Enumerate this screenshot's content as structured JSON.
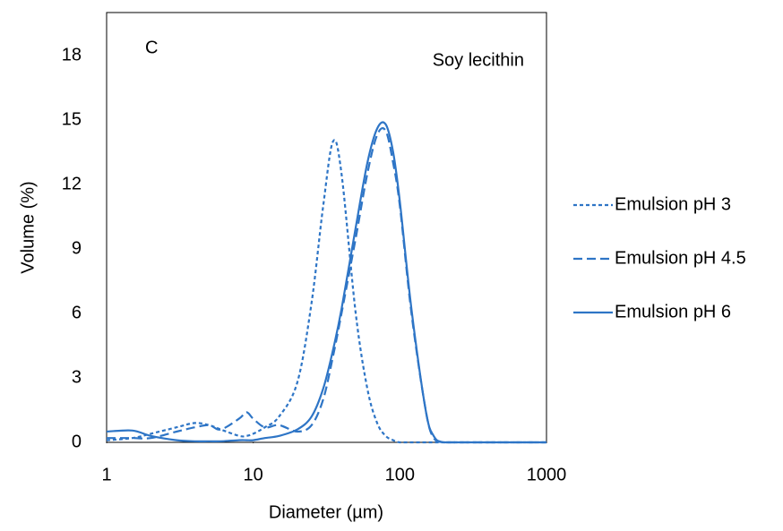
{
  "chart_data": {
    "type": "line",
    "annotations": [
      "C",
      "Soy lecithin"
    ],
    "x_label": "Diameter (µm)",
    "y_label": "Volume (%)",
    "x": [
      1,
      1.5,
      2,
      3,
      4,
      5,
      6,
      8,
      9,
      10,
      12,
      15,
      20,
      25,
      30,
      35,
      40,
      50,
      60,
      70,
      80,
      90,
      100,
      120,
      150,
      170,
      200,
      300,
      500,
      1000
    ],
    "series": [
      {
        "name": "Emulsion pH 3",
        "color": "#2e75c6",
        "dash": "short-dash",
        "values": [
          0.1,
          0.2,
          0.4,
          0.7,
          0.9,
          0.8,
          0.6,
          0.3,
          0.3,
          0.4,
          0.7,
          1.2,
          2.8,
          6.5,
          11,
          14,
          12.5,
          6,
          2.5,
          0.9,
          0.3,
          0.1,
          0,
          0,
          0,
          0,
          0,
          0,
          0,
          0
        ]
      },
      {
        "name": "Emulsion pH 4.5",
        "color": "#2e75c6",
        "dash": "dash",
        "values": [
          0.2,
          0.2,
          0.2,
          0.5,
          0.7,
          0.8,
          0.6,
          1.1,
          1.4,
          1.1,
          0.7,
          0.8,
          0.5,
          0.8,
          2,
          4,
          6,
          9.5,
          12.5,
          14.3,
          14.5,
          13,
          11,
          6,
          1.5,
          0.2,
          0,
          0,
          0,
          0
        ]
      },
      {
        "name": "Emulsion pH 6",
        "color": "#2e75c6",
        "dash": "solid",
        "values": [
          0.5,
          0.55,
          0.3,
          0.1,
          0.05,
          0.05,
          0.05,
          0.1,
          0.1,
          0.1,
          0.2,
          0.3,
          0.6,
          1.2,
          2.5,
          4.3,
          6.2,
          10,
          13,
          14.6,
          14.8,
          13.5,
          11.2,
          6.2,
          1.5,
          0.3,
          0,
          0,
          0,
          0
        ]
      }
    ],
    "log_x": true,
    "xlim": [
      1,
      1000
    ],
    "xticks": [
      1,
      10,
      100,
      1000
    ],
    "ylim": [
      0,
      20
    ],
    "yticks": [
      0,
      3,
      6,
      9,
      12,
      15,
      18
    ],
    "grid": false,
    "legend": "right"
  }
}
